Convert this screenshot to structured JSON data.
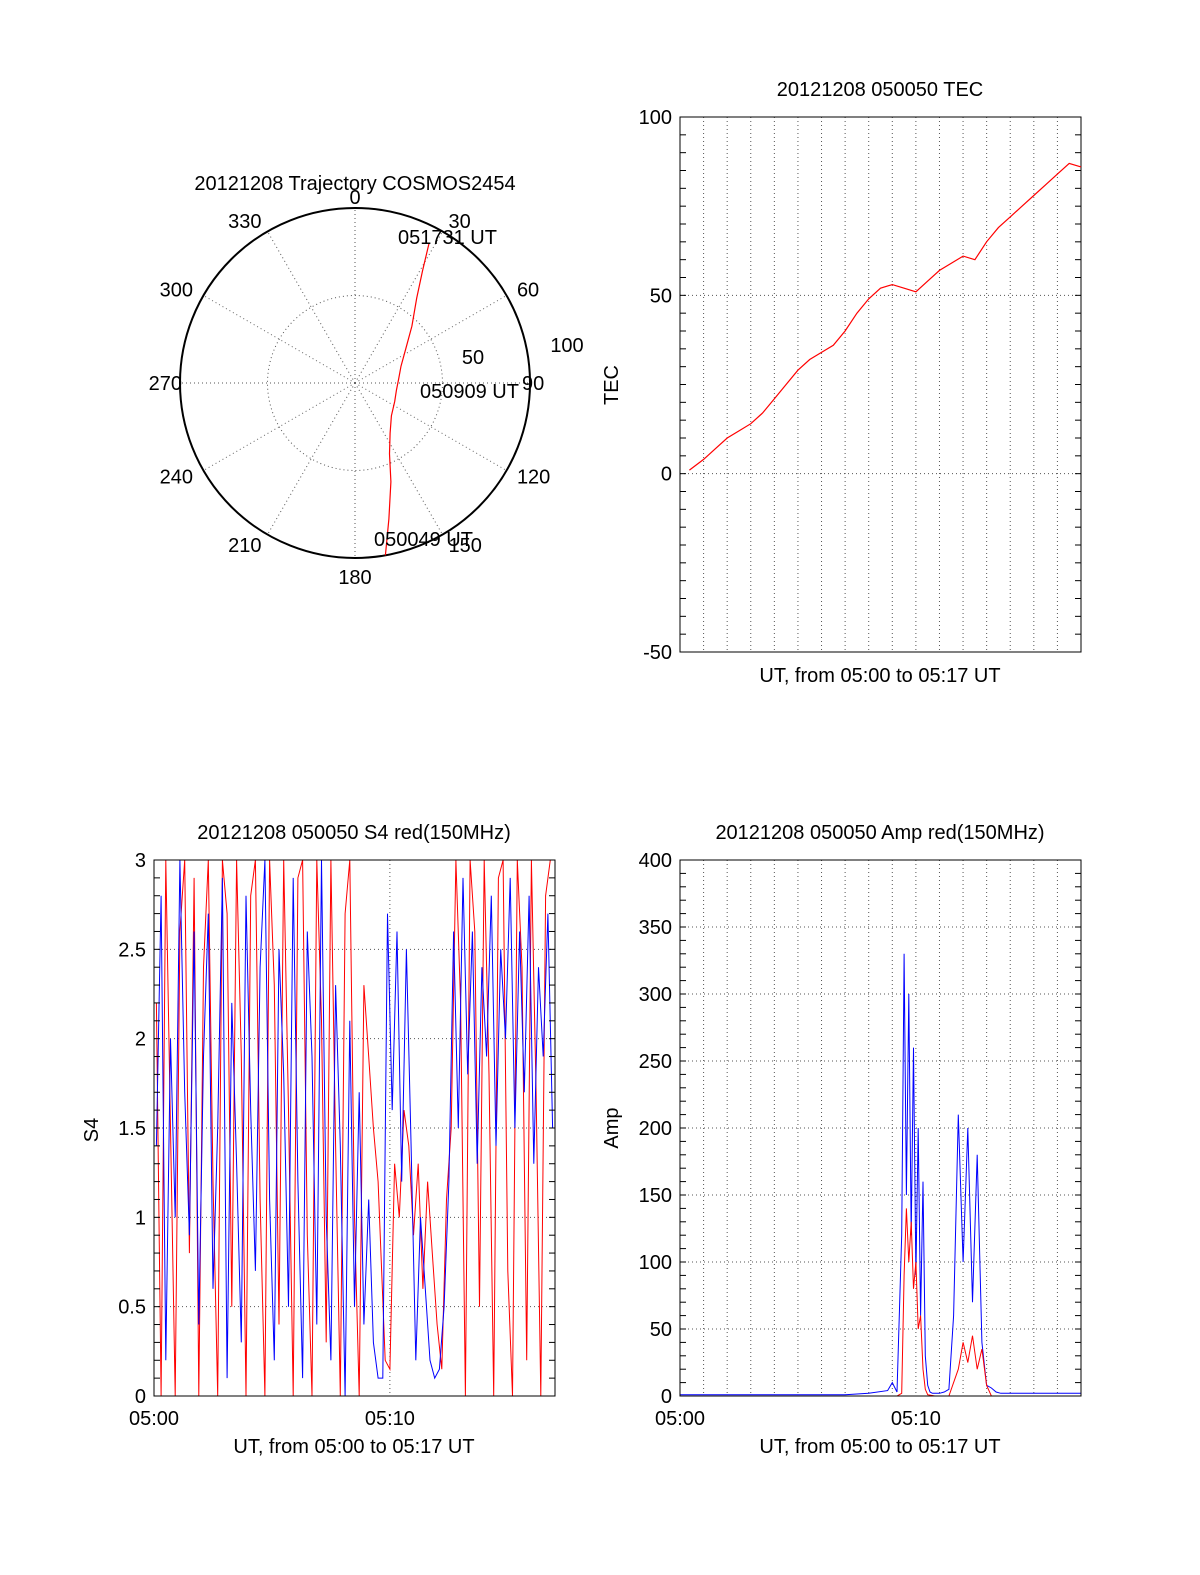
{
  "colors": {
    "red": "#ff0000",
    "blue": "#0000ff",
    "frame": "#000000",
    "grid": "#555555"
  },
  "chart_data": [
    {
      "id": "polar",
      "type": "polar",
      "title": "20121208 Trajectory COSMOS2454",
      "angle_labels": [
        "0",
        "30",
        "60",
        "90",
        "120",
        "150",
        "180",
        "210",
        "240",
        "270",
        "300",
        "330"
      ],
      "radial_labels": [
        "50",
        "100"
      ],
      "rmax": 100,
      "trajectory": [
        [
          170,
          100
        ],
        [
          166,
          80
        ],
        [
          160,
          60
        ],
        [
          154,
          45
        ],
        [
          145,
          35
        ],
        [
          132,
          28
        ],
        [
          115,
          25
        ],
        [
          100,
          24
        ],
        [
          85,
          25
        ],
        [
          70,
          28
        ],
        [
          56,
          35
        ],
        [
          45,
          46
        ],
        [
          36,
          60
        ],
        [
          31,
          75
        ],
        [
          28,
          90
        ]
      ],
      "annotations": [
        {
          "text": "051731 UT",
          "at": [
            28,
            90
          ]
        },
        {
          "text": "050909 UT",
          "at": [
            100,
            24
          ]
        },
        {
          "text": "050049 UT",
          "at": [
            170,
            100
          ]
        }
      ]
    },
    {
      "id": "tec",
      "type": "line",
      "title": "20121208 050050 TEC",
      "xlabel": "UT, from 05:00 to 05:17 UT",
      "ylabel": "TEC",
      "xlim": [
        0,
        17
      ],
      "ylim": [
        -50,
        100
      ],
      "yticks": [
        "100",
        "50",
        "0",
        "-50"
      ],
      "series": [
        {
          "color": "red",
          "x": [
            0.4,
            1.0,
            1.5,
            2.0,
            2.5,
            3.0,
            3.5,
            4.0,
            4.5,
            5.0,
            5.5,
            6.0,
            6.5,
            7.0,
            7.5,
            8.0,
            8.5,
            9.0,
            9.5,
            10.0,
            10.5,
            11.0,
            11.5,
            12.0,
            12.5,
            13.0,
            13.5,
            14.0,
            14.5,
            15.0,
            15.5,
            16.0,
            16.5,
            17.0
          ],
          "y": [
            1,
            4,
            7,
            10,
            12,
            14,
            17,
            21,
            25,
            29,
            32,
            34,
            36,
            40,
            45,
            49,
            52,
            53,
            52,
            51,
            54,
            57,
            59,
            61,
            60,
            65,
            69,
            72,
            75,
            78,
            81,
            84,
            87,
            86
          ]
        }
      ]
    },
    {
      "id": "s4",
      "type": "line",
      "title": "20121208 050050 S4 red(150MHz)",
      "xlabel": "UT, from 05:00 to 05:17 UT",
      "ylabel": "S4",
      "xlim": [
        0,
        17
      ],
      "ylim": [
        0,
        3
      ],
      "xticks": [
        "05:00",
        "05:10"
      ],
      "yticks": [
        "3",
        "2.5",
        "2",
        "1.5",
        "1",
        "0.5",
        "0"
      ],
      "series": [
        {
          "color": "red",
          "x": [
            0.1,
            0.3,
            0.5,
            0.7,
            0.9,
            1.1,
            1.3,
            1.5,
            1.7,
            1.9,
            2.1,
            2.3,
            2.5,
            2.7,
            2.9,
            3.1,
            3.3,
            3.5,
            3.7,
            3.9,
            4.1,
            4.3,
            4.5,
            4.7,
            4.9,
            5.1,
            5.3,
            5.5,
            5.7,
            5.9,
            6.1,
            6.3,
            6.5,
            6.7,
            6.9,
            7.1,
            7.3,
            7.5,
            7.7,
            7.9,
            8.1,
            8.3,
            8.5,
            8.7,
            8.9,
            9.1,
            9.3,
            9.5,
            9.8,
            10.0,
            10.2,
            10.4,
            10.6,
            10.8,
            11.0,
            11.2,
            11.4,
            11.6,
            11.8,
            12.0,
            12.2,
            12.4,
            12.6,
            12.8,
            13.0,
            13.2,
            13.4,
            13.6,
            13.8,
            14.0,
            14.2,
            14.4,
            14.6,
            14.8,
            15.0,
            15.2,
            15.4,
            15.6,
            15.8,
            16.0,
            16.2,
            16.4,
            16.6,
            16.8
          ],
          "y": [
            2.2,
            0,
            3,
            1.5,
            0,
            2.6,
            3,
            0.8,
            2.9,
            0,
            2.4,
            3,
            1.2,
            0,
            3,
            2.7,
            0.5,
            3,
            1.9,
            0,
            2.8,
            3,
            1.1,
            0,
            3,
            2.3,
            0.4,
            3,
            1.6,
            0,
            2.9,
            3,
            0.9,
            0,
            3,
            2.1,
            0.3,
            3,
            1.4,
            0,
            2.7,
            3,
            1.0,
            0,
            2.3,
            1.9,
            1.5,
            1.2,
            0.2,
            0.15,
            1.3,
            1.0,
            1.6,
            1.4,
            0.9,
            1.3,
            0.6,
            1.2,
            0.8,
            0.4,
            0.15,
            1.1,
            1.5,
            3,
            2.2,
            0,
            3,
            2.6,
            0.5,
            3,
            1.8,
            0,
            2.9,
            3,
            0.7,
            0,
            3,
            2.4,
            0.2,
            3,
            1.7,
            0,
            2.8,
            3
          ]
        },
        {
          "color": "blue",
          "x": [
            0.1,
            0.3,
            0.5,
            0.7,
            0.9,
            1.1,
            1.3,
            1.5,
            1.7,
            1.9,
            2.1,
            2.3,
            2.5,
            2.7,
            2.9,
            3.1,
            3.3,
            3.5,
            3.7,
            3.9,
            4.1,
            4.3,
            4.5,
            4.7,
            4.9,
            5.1,
            5.3,
            5.5,
            5.7,
            5.9,
            6.1,
            6.3,
            6.5,
            6.7,
            6.9,
            7.1,
            7.3,
            7.5,
            7.7,
            7.9,
            8.1,
            8.3,
            8.5,
            8.7,
            8.9,
            9.1,
            9.3,
            9.5,
            9.7,
            9.9,
            10.1,
            10.3,
            10.5,
            10.7,
            10.9,
            11.1,
            11.3,
            11.5,
            11.7,
            11.9,
            12.1,
            12.3,
            12.5,
            12.7,
            12.9,
            13.1,
            13.3,
            13.5,
            13.7,
            13.9,
            14.1,
            14.3,
            14.5,
            14.7,
            14.9,
            15.1,
            15.3,
            15.5,
            15.7,
            15.9,
            16.1,
            16.3,
            16.5,
            16.7,
            16.9
          ],
          "y": [
            1.4,
            2.8,
            0.2,
            2.0,
            1.0,
            3,
            1.7,
            0.9,
            2.6,
            0.4,
            1.9,
            2.7,
            0.6,
            1.5,
            2.9,
            0.1,
            2.2,
            1.3,
            0.3,
            2.8,
            1.6,
            0.7,
            2.4,
            3,
            1.1,
            0.2,
            2.5,
            1.8,
            0.5,
            2.9,
            1.2,
            0.1,
            2.6,
            1.9,
            0.4,
            3,
            1.0,
            0.2,
            2.3,
            1.4,
            0.0,
            2.1,
            0.5,
            1.7,
            0.4,
            1.1,
            0.3,
            0.1,
            0.1,
            2.7,
            1.6,
            2.6,
            1.2,
            2.5,
            1.4,
            0.2,
            1.0,
            0.6,
            0.2,
            0.1,
            0.15,
            0.5,
            1.2,
            2.6,
            1.5,
            2.9,
            1.8,
            2.6,
            1.3,
            2.4,
            1.9,
            2.8,
            1.4,
            2.5,
            2.0,
            2.9,
            1.5,
            2.6,
            1.7,
            2.8,
            1.3,
            2.4,
            1.9,
            2.7,
            1.5
          ]
        }
      ]
    },
    {
      "id": "amp",
      "type": "line",
      "title": "20121208 050050 Amp red(150MHz)",
      "xlabel": "UT, from 05:00 to 05:17 UT",
      "ylabel": "Amp",
      "xlim": [
        0,
        17
      ],
      "ylim": [
        0,
        400
      ],
      "xticks": [
        "05:00",
        "05:10"
      ],
      "yticks": [
        "400",
        "350",
        "300",
        "250",
        "200",
        "150",
        "100",
        "50",
        "0"
      ],
      "series": [
        {
          "color": "blue",
          "x": [
            0,
            1,
            2,
            3,
            4,
            5,
            6,
            7,
            8,
            8.8,
            9.0,
            9.2,
            9.4,
            9.5,
            9.6,
            9.7,
            9.8,
            9.9,
            10.0,
            10.1,
            10.2,
            10.3,
            10.4,
            10.5,
            10.6,
            10.7,
            10.8,
            11.0,
            11.2,
            11.4,
            11.6,
            11.8,
            12.0,
            12.2,
            12.4,
            12.6,
            12.8,
            13.0,
            13.2,
            13.4,
            13.6,
            13.8,
            14.0,
            15.0,
            16.0,
            17.0
          ],
          "y": [
            1,
            1,
            1,
            1,
            1,
            1,
            1,
            1,
            2,
            4,
            10,
            3,
            120,
            330,
            150,
            300,
            120,
            260,
            90,
            200,
            60,
            160,
            30,
            8,
            3,
            2,
            2,
            2,
            3,
            5,
            60,
            210,
            100,
            200,
            70,
            180,
            40,
            8,
            6,
            3,
            2,
            2,
            2,
            2,
            2,
            2
          ]
        },
        {
          "color": "red",
          "x": [
            0,
            8,
            9.2,
            9.4,
            9.5,
            9.6,
            9.7,
            9.8,
            9.9,
            10.0,
            10.1,
            10.2,
            10.3,
            10.4,
            10.5,
            10.8,
            11.4,
            11.6,
            11.8,
            12.0,
            12.2,
            12.4,
            12.6,
            12.8,
            13.0,
            13.2,
            17.0
          ],
          "y": [
            0,
            0,
            0,
            2,
            90,
            140,
            100,
            130,
            80,
            100,
            50,
            60,
            20,
            5,
            1,
            0,
            0,
            10,
            20,
            40,
            25,
            45,
            20,
            35,
            8,
            0,
            0
          ]
        }
      ]
    }
  ]
}
